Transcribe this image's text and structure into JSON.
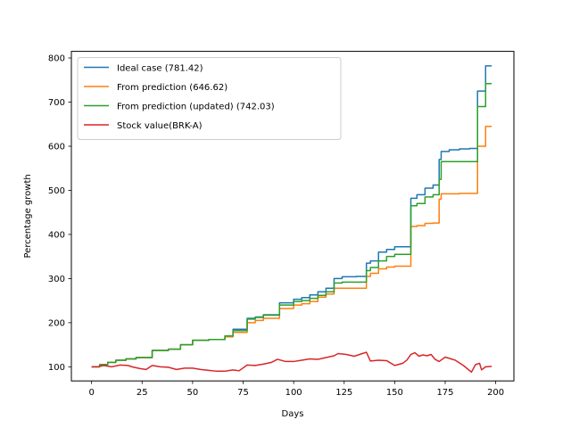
{
  "chart_data": {
    "type": "line",
    "title": "",
    "xlabel": "Days",
    "ylabel": "Percentage growth",
    "xlim": [
      -10,
      209
    ],
    "ylim": [
      68,
      815
    ],
    "xticks": [
      0,
      25,
      50,
      75,
      100,
      125,
      150,
      175,
      200
    ],
    "yticks": [
      100,
      200,
      300,
      400,
      500,
      600,
      700,
      800
    ],
    "grid": false,
    "legend": "top-left",
    "series": [
      {
        "name": "Ideal case (781.42)",
        "color": "#1f77b4",
        "step": true,
        "x": [
          0,
          4,
          8,
          12,
          17,
          22,
          30,
          38,
          44,
          50,
          58,
          66,
          70,
          77,
          81,
          85,
          93,
          100,
          104,
          108,
          112,
          116,
          120,
          124,
          131,
          136,
          138,
          142,
          146,
          150,
          158,
          161,
          165,
          169,
          172,
          173,
          177,
          182,
          187,
          191,
          195,
          198
        ],
        "y": [
          100,
          105,
          110,
          115,
          118,
          121,
          137,
          140,
          150,
          160,
          162,
          170,
          185,
          210,
          213,
          218,
          245,
          253,
          257,
          263,
          270,
          278,
          300,
          304,
          305,
          335,
          340,
          360,
          366,
          372,
          482,
          490,
          505,
          512,
          570,
          588,
          592,
          594,
          595,
          725,
          782,
          782
        ]
      },
      {
        "name": "From prediction (646.62)",
        "color": "#ff7f0e",
        "step": true,
        "x": [
          0,
          4,
          8,
          12,
          17,
          22,
          30,
          38,
          44,
          50,
          58,
          66,
          70,
          77,
          81,
          85,
          93,
          100,
          104,
          108,
          112,
          116,
          120,
          124,
          131,
          136,
          138,
          142,
          146,
          150,
          158,
          161,
          165,
          169,
          172,
          173,
          177,
          182,
          187,
          191,
          195,
          198
        ],
        "y": [
          100,
          105,
          110,
          115,
          118,
          121,
          137,
          140,
          150,
          160,
          162,
          168,
          178,
          200,
          205,
          210,
          232,
          240,
          243,
          248,
          258,
          265,
          278,
          278,
          278,
          305,
          312,
          322,
          326,
          328,
          418,
          420,
          425,
          426,
          480,
          492,
          492,
          493,
          493,
          600,
          645,
          645
        ]
      },
      {
        "name": "From prediction (updated) (742.03)",
        "color": "#2ca02c",
        "step": true,
        "x": [
          0,
          4,
          8,
          12,
          17,
          22,
          30,
          38,
          44,
          50,
          58,
          66,
          70,
          77,
          81,
          85,
          93,
          100,
          104,
          108,
          112,
          116,
          120,
          124,
          131,
          136,
          138,
          142,
          146,
          150,
          158,
          161,
          165,
          169,
          172,
          173,
          177,
          182,
          187,
          191,
          195,
          198
        ],
        "y": [
          100,
          105,
          110,
          115,
          118,
          121,
          137,
          140,
          150,
          160,
          162,
          170,
          182,
          208,
          212,
          217,
          240,
          248,
          250,
          255,
          262,
          270,
          290,
          292,
          292,
          318,
          325,
          340,
          350,
          355,
          465,
          470,
          485,
          490,
          525,
          565,
          565,
          565,
          565,
          690,
          742,
          742
        ]
      },
      {
        "name": "Stock value(BRK-A)",
        "color": "#d62728",
        "step": false,
        "x": [
          0,
          3,
          6,
          10,
          14,
          18,
          20,
          24,
          27,
          30,
          34,
          38,
          42,
          46,
          50,
          54,
          58,
          62,
          66,
          70,
          73,
          77,
          81,
          85,
          89,
          92,
          96,
          100,
          104,
          108,
          112,
          116,
          120,
          122,
          126,
          130,
          134,
          136,
          138,
          142,
          146,
          150,
          154,
          156,
          158,
          160,
          162,
          164,
          166,
          168,
          170,
          172,
          175,
          180,
          184,
          188,
          190,
          192,
          193,
          195,
          198
        ],
        "y": [
          100,
          100,
          103,
          100,
          104,
          103,
          100,
          96,
          94,
          103,
          100,
          99,
          94,
          97,
          97,
          94,
          92,
          90,
          90,
          93,
          91,
          104,
          103,
          106,
          110,
          117,
          112,
          112,
          115,
          118,
          117,
          121,
          125,
          130,
          128,
          124,
          130,
          133,
          113,
          115,
          114,
          103,
          108,
          115,
          128,
          132,
          124,
          127,
          125,
          128,
          117,
          112,
          122,
          115,
          103,
          88,
          105,
          108,
          93,
          100,
          101
        ]
      }
    ]
  }
}
